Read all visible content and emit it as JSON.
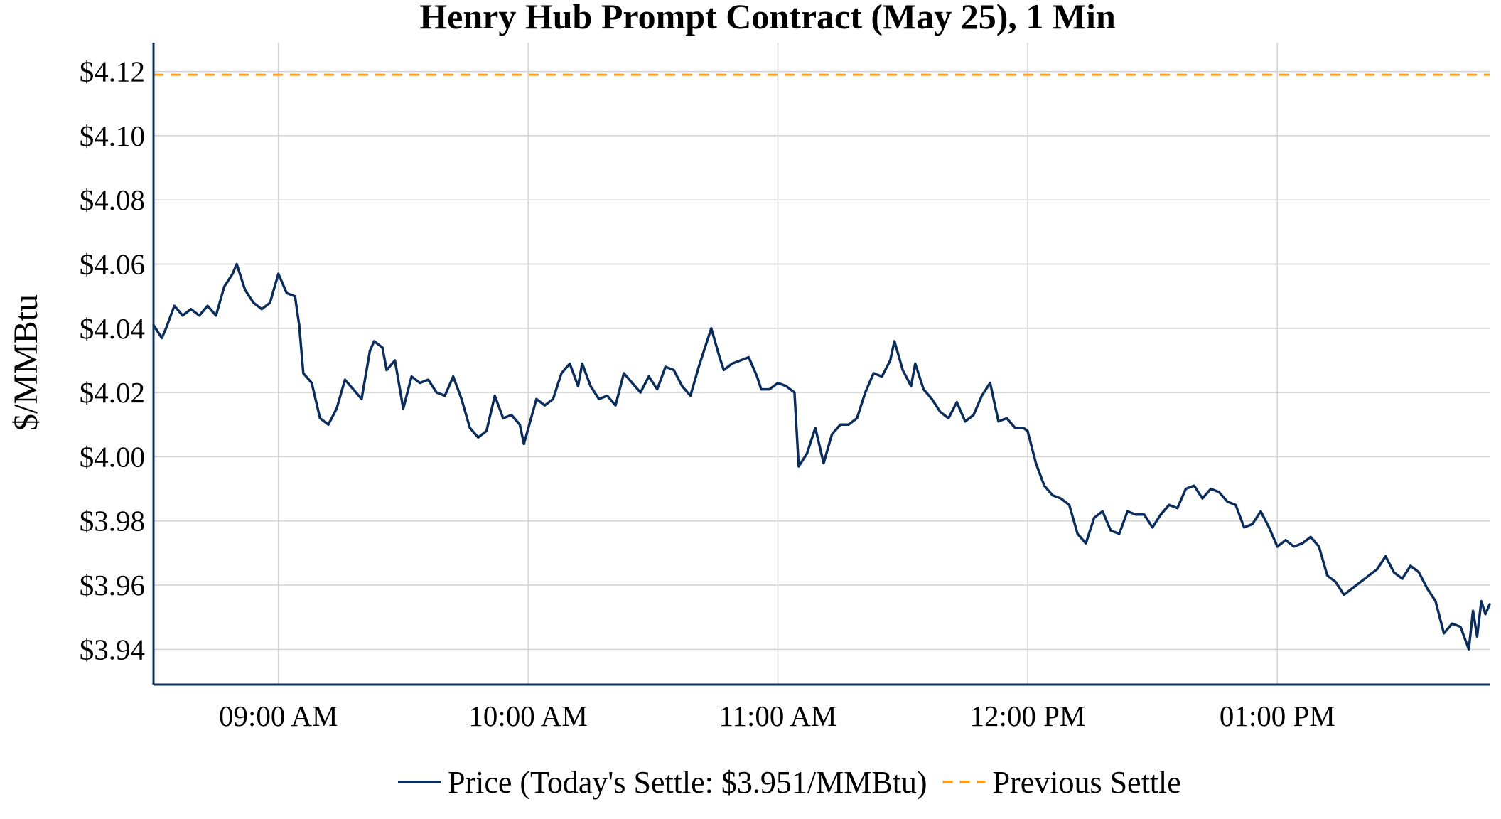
{
  "chart_data": {
    "type": "line",
    "title": "Henry Hub Prompt Contract (May 25), 1 Min",
    "ylabel": "$/MMBtu",
    "xlabel": "",
    "ylim": [
      3.929,
      4.129
    ],
    "x_range": [
      "08:30",
      "13:51"
    ],
    "yticks": [
      3.94,
      3.96,
      3.98,
      4.0,
      4.02,
      4.04,
      4.06,
      4.08,
      4.1,
      4.12
    ],
    "ytick_labels": [
      "$3.94",
      "$3.96",
      "$3.98",
      "$4.00",
      "$4.02",
      "$4.04",
      "$4.06",
      "$4.08",
      "$4.10",
      "$4.12"
    ],
    "xticks": [
      "09:00",
      "10:00",
      "11:00",
      "12:00",
      "13:00"
    ],
    "xtick_labels": [
      "09:00 AM",
      "10:00 AM",
      "11:00 AM",
      "12:00 PM",
      "01:00 PM"
    ],
    "grid": true,
    "legend_position": "bottom-center",
    "series": [
      {
        "name": "Price (Today's Settle: $3.951/MMBtu)",
        "color": "#0b2d5b",
        "style": "solid",
        "points": [
          [
            "08:30",
            4.041
          ],
          [
            "08:32",
            4.037
          ],
          [
            "08:33",
            4.04
          ],
          [
            "08:35",
            4.047
          ],
          [
            "08:37",
            4.044
          ],
          [
            "08:39",
            4.046
          ],
          [
            "08:41",
            4.044
          ],
          [
            "08:43",
            4.047
          ],
          [
            "08:45",
            4.044
          ],
          [
            "08:47",
            4.053
          ],
          [
            "08:49",
            4.057
          ],
          [
            "08:50",
            4.06
          ],
          [
            "08:52",
            4.052
          ],
          [
            "08:54",
            4.048
          ],
          [
            "08:56",
            4.046
          ],
          [
            "08:58",
            4.048
          ],
          [
            "09:00",
            4.057
          ],
          [
            "09:02",
            4.051
          ],
          [
            "09:04",
            4.05
          ],
          [
            "09:05",
            4.041
          ],
          [
            "09:06",
            4.026
          ],
          [
            "09:08",
            4.023
          ],
          [
            "09:10",
            4.012
          ],
          [
            "09:12",
            4.01
          ],
          [
            "09:14",
            4.015
          ],
          [
            "09:16",
            4.024
          ],
          [
            "09:18",
            4.021
          ],
          [
            "09:20",
            4.018
          ],
          [
            "09:22",
            4.033
          ],
          [
            "09:23",
            4.036
          ],
          [
            "09:25",
            4.034
          ],
          [
            "09:26",
            4.027
          ],
          [
            "09:28",
            4.03
          ],
          [
            "09:30",
            4.015
          ],
          [
            "09:32",
            4.025
          ],
          [
            "09:34",
            4.023
          ],
          [
            "09:36",
            4.024
          ],
          [
            "09:38",
            4.02
          ],
          [
            "09:40",
            4.019
          ],
          [
            "09:42",
            4.025
          ],
          [
            "09:44",
            4.018
          ],
          [
            "09:46",
            4.009
          ],
          [
            "09:48",
            4.006
          ],
          [
            "09:50",
            4.008
          ],
          [
            "09:52",
            4.019
          ],
          [
            "09:54",
            4.012
          ],
          [
            "09:56",
            4.013
          ],
          [
            "09:58",
            4.01
          ],
          [
            "09:59",
            4.004
          ],
          [
            "10:02",
            4.018
          ],
          [
            "10:04",
            4.016
          ],
          [
            "10:06",
            4.018
          ],
          [
            "10:08",
            4.026
          ],
          [
            "10:10",
            4.029
          ],
          [
            "10:12",
            4.022
          ],
          [
            "10:13",
            4.029
          ],
          [
            "10:15",
            4.022
          ],
          [
            "10:17",
            4.018
          ],
          [
            "10:19",
            4.019
          ],
          [
            "10:21",
            4.016
          ],
          [
            "10:23",
            4.026
          ],
          [
            "10:25",
            4.023
          ],
          [
            "10:27",
            4.02
          ],
          [
            "10:29",
            4.025
          ],
          [
            "10:31",
            4.021
          ],
          [
            "10:33",
            4.028
          ],
          [
            "10:35",
            4.027
          ],
          [
            "10:37",
            4.022
          ],
          [
            "10:39",
            4.019
          ],
          [
            "10:41",
            4.028
          ],
          [
            "10:43",
            4.036
          ],
          [
            "10:44",
            4.04
          ],
          [
            "10:46",
            4.031
          ],
          [
            "10:47",
            4.027
          ],
          [
            "10:49",
            4.029
          ],
          [
            "10:51",
            4.03
          ],
          [
            "10:53",
            4.031
          ],
          [
            "10:55",
            4.025
          ],
          [
            "10:56",
            4.021
          ],
          [
            "10:58",
            4.021
          ],
          [
            "11:00",
            4.023
          ],
          [
            "11:02",
            4.022
          ],
          [
            "11:04",
            4.02
          ],
          [
            "11:05",
            3.997
          ],
          [
            "11:07",
            4.001
          ],
          [
            "11:09",
            4.009
          ],
          [
            "11:11",
            3.998
          ],
          [
            "11:13",
            4.007
          ],
          [
            "11:15",
            4.01
          ],
          [
            "11:17",
            4.01
          ],
          [
            "11:19",
            4.012
          ],
          [
            "11:21",
            4.02
          ],
          [
            "11:23",
            4.026
          ],
          [
            "11:25",
            4.025
          ],
          [
            "11:27",
            4.03
          ],
          [
            "11:28",
            4.036
          ],
          [
            "11:30",
            4.027
          ],
          [
            "11:32",
            4.022
          ],
          [
            "11:33",
            4.029
          ],
          [
            "11:35",
            4.021
          ],
          [
            "11:37",
            4.018
          ],
          [
            "11:39",
            4.014
          ],
          [
            "11:41",
            4.012
          ],
          [
            "11:43",
            4.017
          ],
          [
            "11:45",
            4.011
          ],
          [
            "11:47",
            4.013
          ],
          [
            "11:49",
            4.019
          ],
          [
            "11:51",
            4.023
          ],
          [
            "11:53",
            4.011
          ],
          [
            "11:55",
            4.012
          ],
          [
            "11:57",
            4.009
          ],
          [
            "11:59",
            4.009
          ],
          [
            "12:00",
            4.008
          ],
          [
            "12:02",
            3.998
          ],
          [
            "12:04",
            3.991
          ],
          [
            "12:06",
            3.988
          ],
          [
            "12:08",
            3.987
          ],
          [
            "12:10",
            3.985
          ],
          [
            "12:12",
            3.976
          ],
          [
            "12:14",
            3.973
          ],
          [
            "12:16",
            3.981
          ],
          [
            "12:18",
            3.983
          ],
          [
            "12:20",
            3.977
          ],
          [
            "12:22",
            3.976
          ],
          [
            "12:24",
            3.983
          ],
          [
            "12:26",
            3.982
          ],
          [
            "12:28",
            3.982
          ],
          [
            "12:30",
            3.978
          ],
          [
            "12:32",
            3.982
          ],
          [
            "12:34",
            3.985
          ],
          [
            "12:36",
            3.984
          ],
          [
            "12:38",
            3.99
          ],
          [
            "12:40",
            3.991
          ],
          [
            "12:42",
            3.987
          ],
          [
            "12:44",
            3.99
          ],
          [
            "12:46",
            3.989
          ],
          [
            "12:48",
            3.986
          ],
          [
            "12:50",
            3.985
          ],
          [
            "12:52",
            3.978
          ],
          [
            "12:54",
            3.979
          ],
          [
            "12:56",
            3.983
          ],
          [
            "12:58",
            3.978
          ],
          [
            "13:00",
            3.972
          ],
          [
            "13:02",
            3.974
          ],
          [
            "13:04",
            3.972
          ],
          [
            "13:06",
            3.973
          ],
          [
            "13:08",
            3.975
          ],
          [
            "13:10",
            3.972
          ],
          [
            "13:12",
            3.963
          ],
          [
            "13:14",
            3.961
          ],
          [
            "13:16",
            3.957
          ],
          [
            "13:18",
            3.959
          ],
          [
            "13:20",
            3.961
          ],
          [
            "13:22",
            3.963
          ],
          [
            "13:24",
            3.965
          ],
          [
            "13:26",
            3.969
          ],
          [
            "13:28",
            3.964
          ],
          [
            "13:30",
            3.962
          ],
          [
            "13:32",
            3.966
          ],
          [
            "13:34",
            3.964
          ],
          [
            "13:36",
            3.959
          ],
          [
            "13:38",
            3.955
          ],
          [
            "13:40",
            3.945
          ],
          [
            "13:42",
            3.948
          ],
          [
            "13:44",
            3.947
          ],
          [
            "13:46",
            3.94
          ],
          [
            "13:47",
            3.952
          ],
          [
            "13:48",
            3.944
          ],
          [
            "13:49",
            3.955
          ],
          [
            "13:50",
            3.951
          ],
          [
            "13:51",
            3.954
          ]
        ]
      },
      {
        "name": "Previous Settle",
        "color": "#ff9f1c",
        "style": "dashed",
        "value": 4.119
      }
    ]
  }
}
